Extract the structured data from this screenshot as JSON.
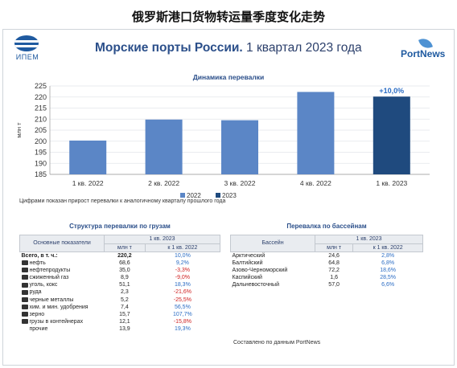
{
  "caption": "俄罗斯港口货物转运量季度变化走势",
  "logo_left_text": "ИПЕМ",
  "logo_right_text": "PortNews",
  "header": {
    "title_main": "Морские порты России.",
    "title_sub": "1 квартал 2023 года"
  },
  "chart_data": {
    "type": "bar",
    "title": "Динамика перевалки",
    "ylabel": "млн т",
    "categories": [
      "1 кв. 2022",
      "2 кв. 2022",
      "3 кв. 2022",
      "4 кв. 2022",
      "1 кв. 2023"
    ],
    "values": [
      200.3,
      209.8,
      209.5,
      222.3,
      220.2
    ],
    "bar_series": [
      2022,
      2022,
      2022,
      2022,
      2023
    ],
    "ylim": [
      185,
      225
    ],
    "yticks": [
      185,
      190,
      195,
      200,
      205,
      210,
      215,
      220,
      225
    ],
    "annotation": "+10,0%",
    "legend": [
      "2022",
      "2023"
    ],
    "legend_position": "bottom",
    "colors": {
      "2022": "#5b86c6",
      "2023": "#1f4a7e"
    },
    "grid": true
  },
  "note": "Цифрами показан прирост перевалки к аналогичному кварталу прошлого года",
  "cargo": {
    "title": "Структура перевалки по грузам",
    "col_label": "Основные показатели",
    "period": "1 кв. 2023",
    "unit": "млн т",
    "change": "к 1 кв. 2022",
    "rows": [
      {
        "name": "Всего, в т. ч.:",
        "v": "220,2",
        "c": "10,0%",
        "bold": true,
        "icon": "none"
      },
      {
        "name": "нефть",
        "v": "68,6",
        "c": "9,2%",
        "icon": "oil-barrel-icon"
      },
      {
        "name": "нефтепродукты",
        "v": "35,0",
        "c": "-3,3%",
        "icon": "fuel-icon"
      },
      {
        "name": "сжиженный газ",
        "v": "8,9",
        "c": "-9,0%",
        "icon": "gas-tank-icon"
      },
      {
        "name": "уголь, кокс",
        "v": "51,1",
        "c": "18,3%",
        "icon": "coal-icon"
      },
      {
        "name": "руда",
        "v": "2,3",
        "c": "-21,6%",
        "icon": "ore-icon"
      },
      {
        "name": "черные металлы",
        "v": "5,2",
        "c": "-25,5%",
        "icon": "metal-icon"
      },
      {
        "name": "хим. и мин. удобрения",
        "v": "7,4",
        "c": "56,5%",
        "icon": "fertilizer-icon"
      },
      {
        "name": "зерно",
        "v": "15,7",
        "c": "107,7%",
        "icon": "grain-icon"
      },
      {
        "name": "грузы в контейнерах",
        "v": "12,1",
        "c": "-15,8%",
        "icon": "container-icon"
      },
      {
        "name": "прочие",
        "v": "13,9",
        "c": "19,3%",
        "icon": "none"
      }
    ]
  },
  "basins": {
    "title": "Перевалка по бассейнам",
    "col_label": "Бассейн",
    "period": "1 кв. 2023",
    "unit": "млн т",
    "change": "к 1 кв. 2022",
    "rows": [
      {
        "name": "Арктический",
        "v": "24,6",
        "c": "2,8%"
      },
      {
        "name": "Балтийский",
        "v": "64,8",
        "c": "6,8%"
      },
      {
        "name": "Азово-Черноморский",
        "v": "72,2",
        "c": "18,6%"
      },
      {
        "name": "Каспийский",
        "v": "1,6",
        "c": "28,5%"
      },
      {
        "name": "Дальневосточный",
        "v": "57,0",
        "c": "6,6%"
      }
    ]
  },
  "source": "Составлено по данным PortNews"
}
